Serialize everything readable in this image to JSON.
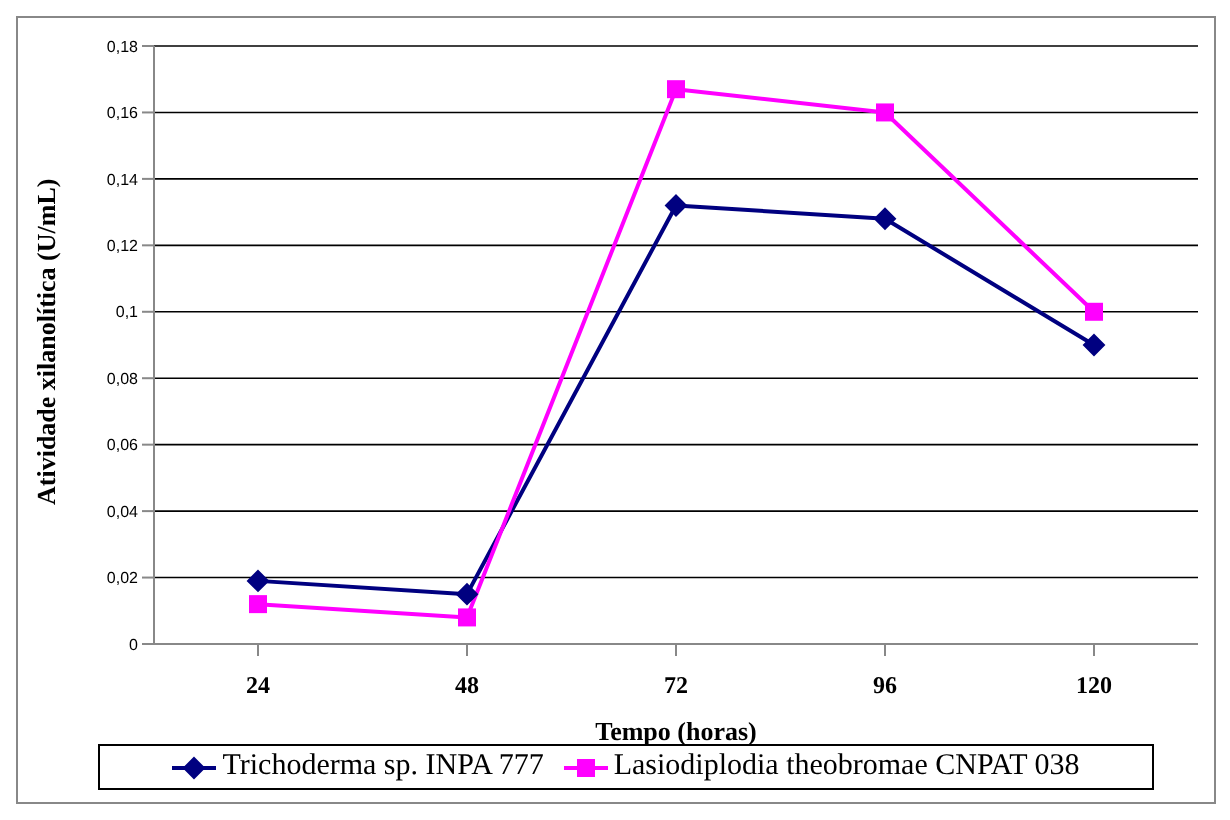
{
  "chart_data": {
    "type": "line",
    "xlabel": "Tempo (horas)",
    "ylabel": "Atividade xilanolítica  (U/mL)",
    "categories": [
      "24",
      "48",
      "72",
      "96",
      "120"
    ],
    "series": [
      {
        "name": "Trichoderma sp. INPA 777",
        "color": "#000080",
        "marker": "diamond",
        "values": [
          0.019,
          0.015,
          0.132,
          0.128,
          0.09
        ]
      },
      {
        "name": "Lasiodiplodia theobromae CNPAT 038",
        "color": "#ff00ff",
        "marker": "square",
        "values": [
          0.012,
          0.008,
          0.167,
          0.16,
          0.1
        ]
      }
    ],
    "ylim": [
      0,
      0.18
    ],
    "yticks": [
      {
        "value": 0,
        "label": "0"
      },
      {
        "value": 0.02,
        "label": "0,02"
      },
      {
        "value": 0.04,
        "label": "0,04"
      },
      {
        "value": 0.06,
        "label": "0,06"
      },
      {
        "value": 0.08,
        "label": "0,08"
      },
      {
        "value": 0.1,
        "label": "0,1"
      },
      {
        "value": 0.12,
        "label": "0,12"
      },
      {
        "value": 0.14,
        "label": "0,14"
      },
      {
        "value": 0.16,
        "label": "0,16"
      },
      {
        "value": 0.18,
        "label": "0,18"
      }
    ],
    "grid": "y",
    "legend": "bottom"
  }
}
